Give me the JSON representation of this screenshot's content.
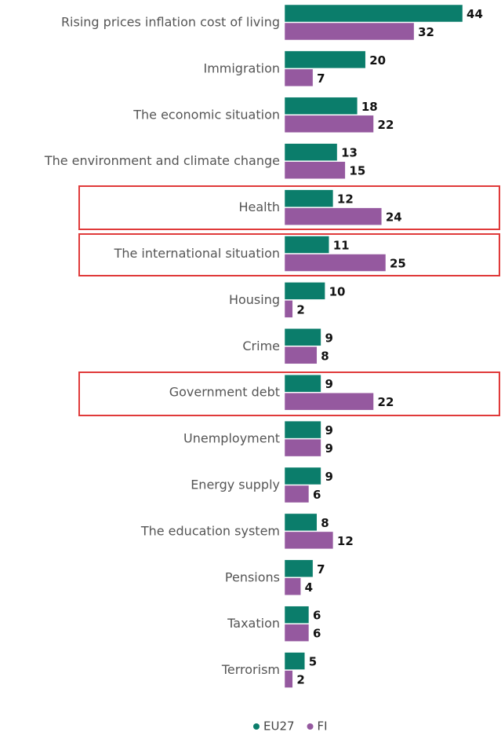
{
  "chart_data": {
    "type": "bar",
    "orientation": "horizontal",
    "categories": [
      "Rising prices inflation cost of living",
      "Immigration",
      "The economic situation",
      "The environment and climate change",
      "Health",
      "The international situation",
      "Housing",
      "Crime",
      "Government debt",
      "Unemployment",
      "Energy supply",
      "The education system",
      "Pensions",
      "Taxation",
      "Terrorism"
    ],
    "series": [
      {
        "name": "EU27",
        "color": "#0b7d6b",
        "values": [
          44,
          20,
          18,
          13,
          12,
          11,
          10,
          9,
          9,
          9,
          9,
          8,
          7,
          6,
          5
        ]
      },
      {
        "name": "FI",
        "color": "#95599f",
        "values": [
          32,
          7,
          22,
          15,
          24,
          25,
          2,
          8,
          22,
          9,
          6,
          12,
          4,
          6,
          2
        ]
      }
    ],
    "legend": "bottom"
  }
}
